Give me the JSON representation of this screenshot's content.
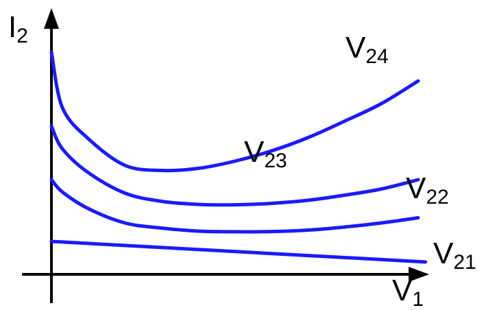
{
  "chart_data": {
    "type": "line",
    "xlabel": {
      "main": "V",
      "sub": "1"
    },
    "ylabel": {
      "main": "I",
      "sub": "2"
    },
    "grid": false,
    "legend": "none",
    "series": [
      {
        "label_main": "V",
        "label_sub": "24",
        "x": [
          0,
          0.3,
          1,
          2,
          3,
          4,
          5,
          6,
          7,
          8,
          9,
          10
        ],
        "y": [
          10.8,
          8.1,
          6.6,
          5.3,
          5.05,
          5.15,
          5.5,
          6.0,
          6.65,
          7.45,
          8.3,
          9.4
        ]
      },
      {
        "label_main": "V",
        "label_sub": "23",
        "x": [
          0,
          0.3,
          1,
          2,
          3,
          4,
          5,
          6,
          7,
          8,
          9,
          10
        ],
        "y": [
          7.2,
          6.1,
          4.95,
          3.95,
          3.55,
          3.4,
          3.38,
          3.45,
          3.6,
          3.85,
          4.15,
          4.6
        ]
      },
      {
        "label_main": "V",
        "label_sub": "22",
        "x": [
          0,
          0.3,
          1,
          2,
          3,
          4,
          5,
          6,
          7,
          8,
          9,
          10
        ],
        "y": [
          4.6,
          4.0,
          3.2,
          2.5,
          2.25,
          2.1,
          2.07,
          2.08,
          2.15,
          2.3,
          2.5,
          2.75
        ]
      },
      {
        "label_main": "V",
        "label_sub": "21",
        "x": [
          0,
          10.2
        ],
        "y": [
          1.6,
          0.6
        ]
      }
    ],
    "colors": {
      "curves": "#1a1aff",
      "axes": "#000000"
    }
  }
}
